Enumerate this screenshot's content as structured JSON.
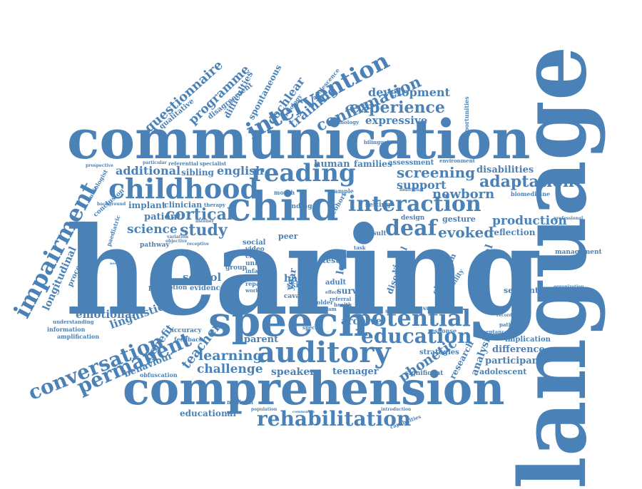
{
  "color": "#4a82b8",
  "background": "#ffffff",
  "words": {
    "language": "language",
    "hearing": "hearing",
    "communication": "communication",
    "comprehension": "comprehension",
    "speech": "speech",
    "child": "child",
    "auditory": "auditory",
    "childhood": "childhood",
    "reading": "reading",
    "interaction": "interaction",
    "intervention": "intervention",
    "impairment": "impairment",
    "conversation": "conversation",
    "permanent": "permanent",
    "potential": "potential",
    "education": "education",
    "rehabilitation": "rehabilitation",
    "deaf": "deaf",
    "adaptation": "adaptation",
    "screening": "screening",
    "confirmation": "confirmation",
    "experience": "experience",
    "development": "development",
    "expressive": "expressive",
    "questionnaire": "questionnaire",
    "programme": "programme",
    "training": "training",
    "cochlear": "cochlear",
    "cortical": "cortical",
    "science": "science",
    "study": "study",
    "additional": "additional",
    "sibling": "sibling",
    "english": "english",
    "support": "support",
    "newborn": "newborn",
    "evoked": "evoked",
    "production": "production",
    "reflection": "reflection",
    "disabilities": "disabilities",
    "teacher": "teacher",
    "learning": "learning",
    "challenge": "challenge",
    "speaker": "speaker",
    "teenager": "teenager",
    "phonetic": "phonetic",
    "analysis": "analysis",
    "research": "research",
    "difference": "difference",
    "participant": "participant",
    "adolescent": "adolescent",
    "implication": "implication",
    "strategies": "strategies",
    "universal": "universal",
    "sequential": "sequential",
    "management": "management",
    "school": "school",
    "emotional": "emotional",
    "linguistic": "linguistic",
    "longitudinal": "longitudinal",
    "behaviour": "behaviour",
    "benefit": "benefit",
    "archive": "archive",
    "parent": "parent",
    "human": "human",
    "families": "families",
    "assessment": "assessment",
    "educational": "educational",
    "patient": "patient",
    "implant": "implant",
    "clinician": "clinician",
    "social": "social",
    "hard": "hard",
    "survey": "survey",
    "disorder": "disorder",
    "visual": "visual",
    "classroom": "classroom",
    "gesture": "gesture",
    "design": "design",
    "variability": "variability",
    "biomedicine": "biomedicine",
    "professional": "professional",
    "organization": "organization",
    "pathology": "pathology",
    "recording": "recording",
    "acceptance": "acceptance",
    "response": "response",
    "significant": "significant",
    "introduction": "introduction",
    "capabilities": "capabilities",
    "population": "population",
    "community": "community",
    "minimal": "minimal",
    "accuracy": "accuracy",
    "feedback": "feedback",
    "obfuscation": "obfuscation",
    "amplification": "amplification",
    "information": "information",
    "understanding": "understanding",
    "processing": "processing",
    "perception": "perception",
    "pathway": "pathway",
    "paediatric": "paediatric",
    "conclusion": "conclusion",
    "audiologist": "audiologist",
    "prospective": "prospective",
    "background": "background",
    "qualitative": "qualitative",
    "disagreement": "disagreement",
    "difficulties": "difficulties",
    "spontaneous": "spontaneous",
    "audiology": "audiology",
    "adolescence": "adolescence",
    "technology": "technology",
    "bilingual": "bilingual",
    "environment": "environment",
    "opportunities": "opportunities",
    "referential": "referential",
    "specialist": "specialist",
    "particular": "particular",
    "therapy": "therapy",
    "listener": "listener",
    "objective": "objective",
    "receptive": "receptive",
    "variation": "variation",
    "evidence": "evidence",
    "video": "video",
    "clear": "clear",
    "unhs": "unhs",
    "infant": "infant",
    "repair": "repair",
    "worker": "worker",
    "group": "group",
    "peer": "peer",
    "older": "older",
    "finding": "finding",
    "month": "month",
    "sample": "sample",
    "cohort": "cohort",
    "setting": "setting",
    "result": "result",
    "task": "task",
    "test": "test",
    "adult": "adult",
    "skill": "skill",
    "loss": "loss",
    "year": "year",
    "score": "score",
    "measure": "measure",
    "spoken": "spoken",
    "referral": "referral",
    "health": "health",
    "program": "program",
    "special": "special",
    "london": "london",
    "effect": "effect",
    "individual": "individual",
    "neonatal": "neonatal",
    "cava": "cava"
  }
}
